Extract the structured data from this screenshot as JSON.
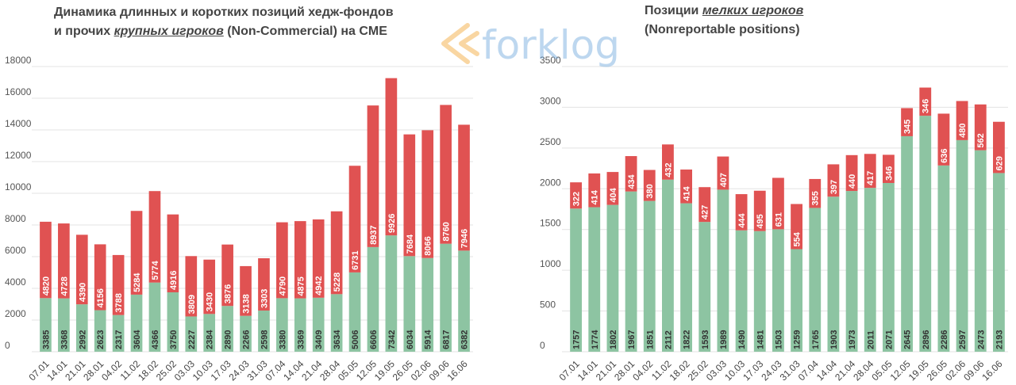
{
  "titles": {
    "left": {
      "line1": "Динамика длинных и коротких позиций хедж-фондов",
      "line2_pre": "и прочих ",
      "line2_em": "крупных игроков",
      "line2_post": " (Non-Commercial) на CME"
    },
    "right": {
      "line1_pre": "Позиции ",
      "line1_em": "мелких игроков",
      "line2": "(Nonreportable positions)"
    }
  },
  "watermark": {
    "text": "forklog",
    "colors": {
      "arrow": "#f2a533",
      "text": "#6fa8dc"
    }
  },
  "colors": {
    "long": "#8dc4a2",
    "short": "#e05252",
    "grid": "#e3e3e3"
  },
  "chart_data": [
    {
      "type": "bar",
      "stacked": true,
      "categories": [
        "07.01",
        "14.01",
        "21.01",
        "28.01",
        "04.02",
        "11.02",
        "18.02",
        "25.02",
        "03.03",
        "10.03",
        "17.03",
        "24.03",
        "31.03",
        "07.04",
        "14.04",
        "21.04",
        "28.04",
        "05.05",
        "12.05",
        "19.05",
        "26.05",
        "02.06",
        "09.06",
        "16.06"
      ],
      "series": [
        {
          "values": [
            3385,
            3368,
            2992,
            2623,
            2317,
            3604,
            4366,
            3750,
            2227,
            2384,
            2890,
            2266,
            2598,
            3380,
            3369,
            3409,
            3634,
            5006,
            6606,
            7342,
            6034,
            5914,
            6817,
            6382
          ]
        },
        {
          "values": [
            4820,
            4728,
            4390,
            4156,
            3788,
            5284,
            5774,
            4916,
            3809,
            3430,
            3876,
            3138,
            3303,
            4790,
            4875,
            4942,
            5228,
            6731,
            8937,
            9926,
            7684,
            8066,
            8760,
            7946
          ]
        }
      ],
      "ylim": [
        0,
        18000
      ],
      "yticks": [
        "0",
        "2000",
        "4000",
        "6000",
        "8000",
        "10000",
        "12000",
        "14000",
        "16000",
        "18000"
      ],
      "grid": true
    },
    {
      "type": "bar",
      "stacked": true,
      "categories": [
        "07.01",
        "14.01",
        "21.01",
        "28.01",
        "04.02",
        "11.02",
        "18.02",
        "25.02",
        "03.03",
        "10.03",
        "17.03",
        "24.03",
        "31.03",
        "07.04",
        "14.04",
        "21.04",
        "28.04",
        "05.05",
        "12.05",
        "19.05",
        "26.05",
        "02.06",
        "09.06",
        "16.06"
      ],
      "series": [
        {
          "values": [
            1757,
            1774,
            1802,
            1967,
            1851,
            2112,
            1822,
            1593,
            1989,
            1490,
            1481,
            1503,
            1259,
            1765,
            1903,
            1973,
            2011,
            2071,
            2645,
            2896,
            2286,
            2597,
            2473,
            2193
          ]
        },
        {
          "values": [
            322,
            414,
            404,
            434,
            380,
            432,
            414,
            427,
            407,
            444,
            495,
            631,
            554,
            355,
            397,
            440,
            417,
            346,
            345,
            346,
            636,
            480,
            562,
            629
          ]
        }
      ],
      "ylim": [
        0,
        3500
      ],
      "yticks": [
        "0",
        "500",
        "1000",
        "1500",
        "2000",
        "2500",
        "3000",
        "3500"
      ],
      "grid": true
    }
  ]
}
